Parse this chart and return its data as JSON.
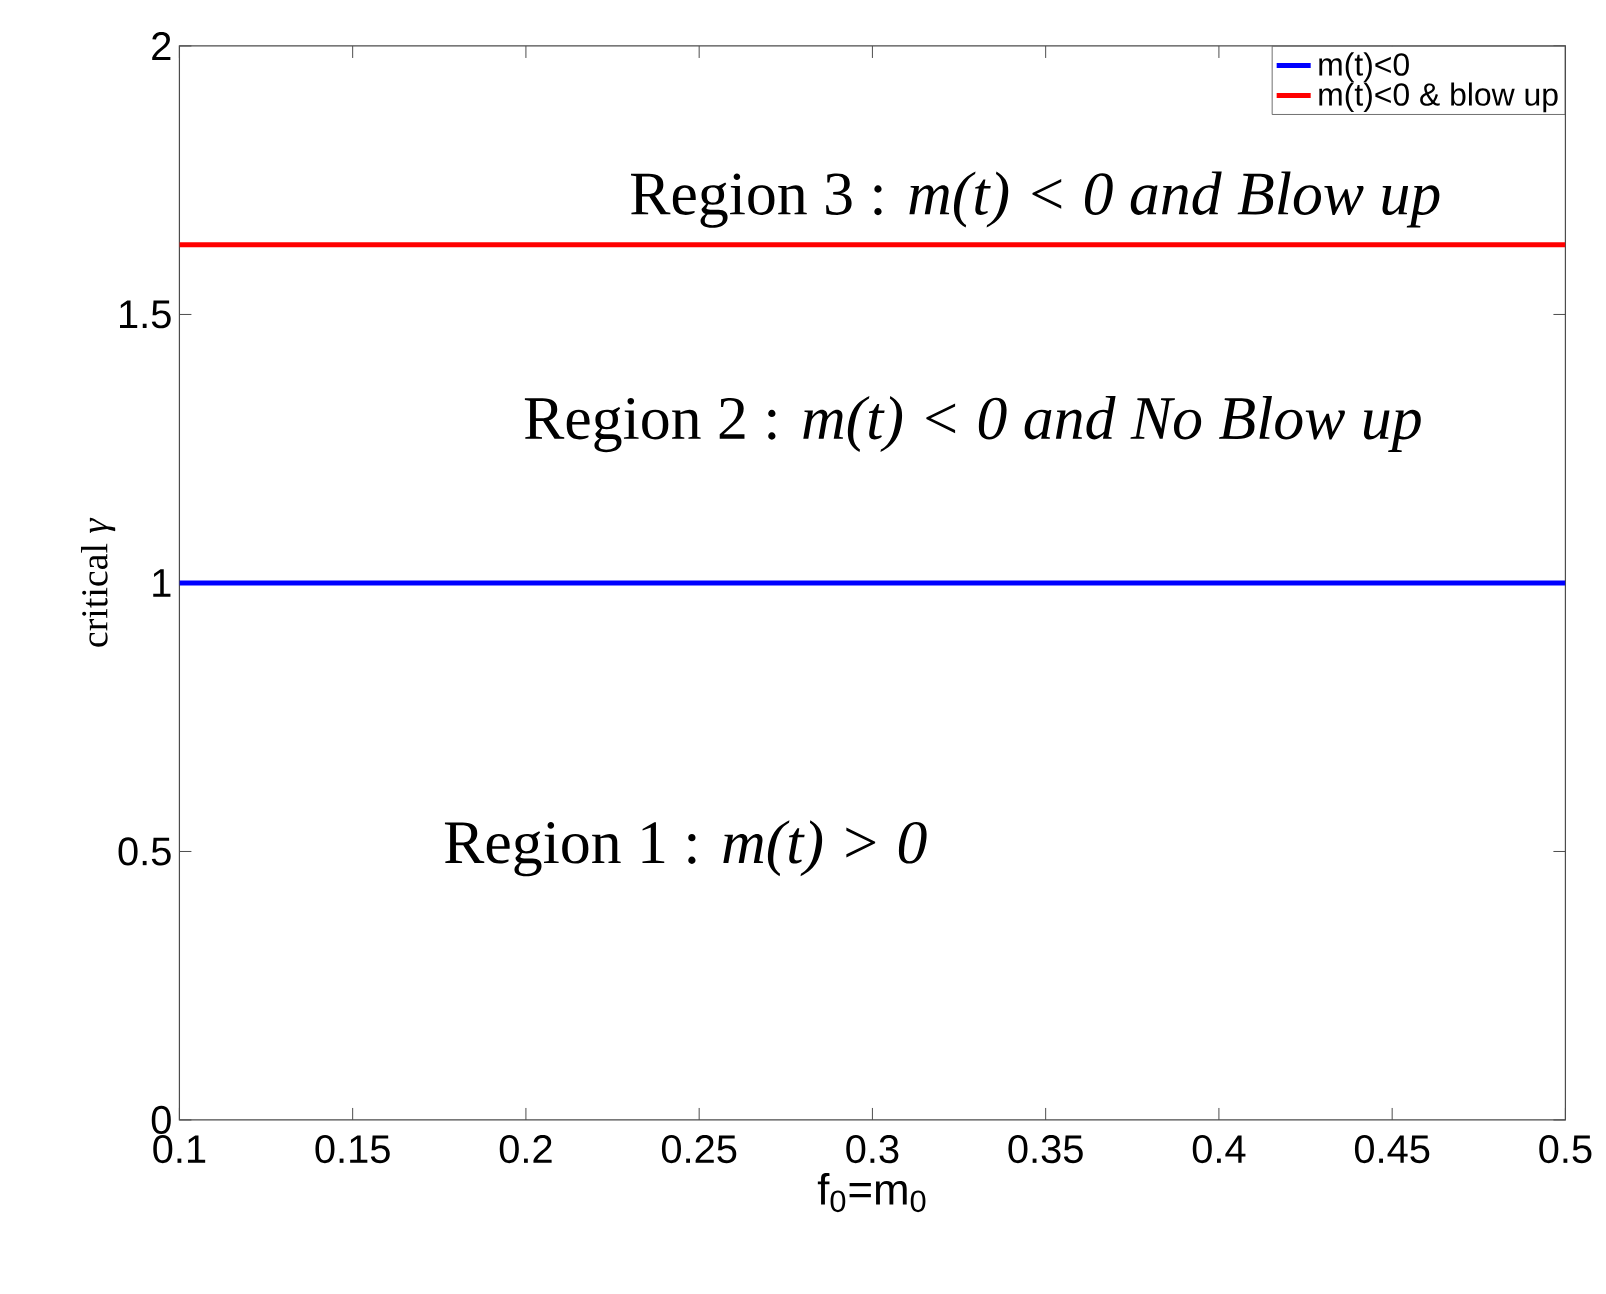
{
  "chart_data": {
    "type": "line",
    "xlabel": "f$_{0}$=m$_{0}$",
    "ylabel": "critical *γ*",
    "x": [
      0.1,
      0.5
    ],
    "series": [
      {
        "name": "m(t)<0",
        "color": "#0000ff",
        "values": [
          1,
          1
        ]
      },
      {
        "name": "m(t)<0 & blow up",
        "color": "#ff0000",
        "values": [
          1.63,
          1.63
        ]
      }
    ],
    "xlim": [
      0.1,
      0.5
    ],
    "xticks": [
      0.1,
      0.15,
      0.2,
      0.25,
      0.3,
      0.35,
      0.4,
      0.45,
      0.5
    ],
    "ylim": [
      0,
      2
    ],
    "yticks": [
      0,
      0.5,
      1,
      1.5,
      2
    ],
    "legend": "top right",
    "annotations": [
      "Region 3 : *m(t) < 0 and Blow up*",
      "Region 2 : *m(t) < 0 and No Blow up*",
      "Region 1 : *m(t) > 0*"
    ]
  }
}
